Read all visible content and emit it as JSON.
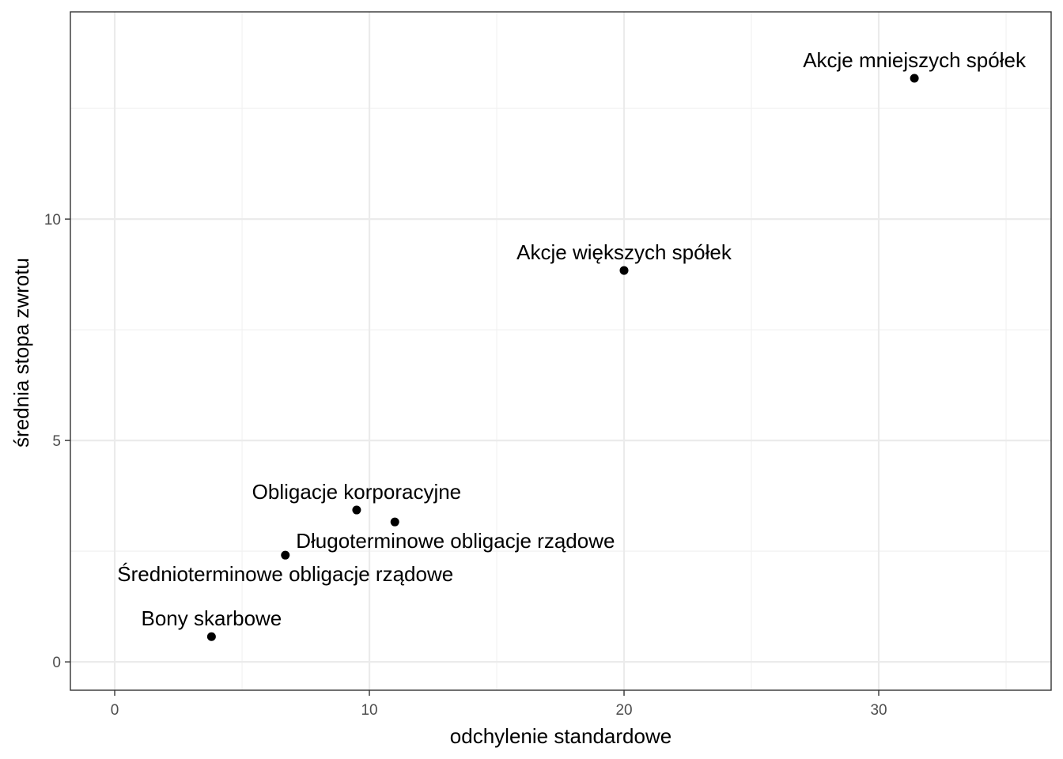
{
  "chart_data": {
    "type": "scatter",
    "title": "",
    "xlabel": "odchylenie standardowe",
    "ylabel": "średnia stopa zwrotu",
    "xlim": [
      -1.74,
      36.77
    ],
    "ylim": [
      -0.64,
      14.68
    ],
    "x_ticks": [
      0,
      10,
      20,
      30
    ],
    "y_ticks": [
      0,
      5,
      10
    ],
    "x_minor": [
      5,
      15,
      25,
      35
    ],
    "y_minor": [
      2.5,
      7.5,
      12.5
    ],
    "grid": true,
    "legend": null,
    "points": [
      {
        "label": "Bony skarbowe",
        "x": 3.8,
        "y": 0.57,
        "label_pos": "above"
      },
      {
        "label": "Średnioterminowe obligacje rządowe",
        "x": 6.7,
        "y": 2.41,
        "label_pos": "below"
      },
      {
        "label": "Obligacje korporacyjne",
        "x": 9.5,
        "y": 3.43,
        "label_pos": "above"
      },
      {
        "label": "Długoterminowe obligacje rządowe",
        "x": 11.0,
        "y": 3.16,
        "label_pos": "below-right"
      },
      {
        "label": "Akcje większych spółek",
        "x": 20.0,
        "y": 8.84,
        "label_pos": "above"
      },
      {
        "label": "Akcje mniejszych spółek",
        "x": 31.4,
        "y": 13.18,
        "label_pos": "above"
      }
    ]
  },
  "colors": {
    "panel_border": "#333333",
    "grid_major": "#ebebeb",
    "grid_minor": "#f2f2f2",
    "point": "#000000",
    "tick": "#333333",
    "tick_label": "#4d4d4d"
  }
}
